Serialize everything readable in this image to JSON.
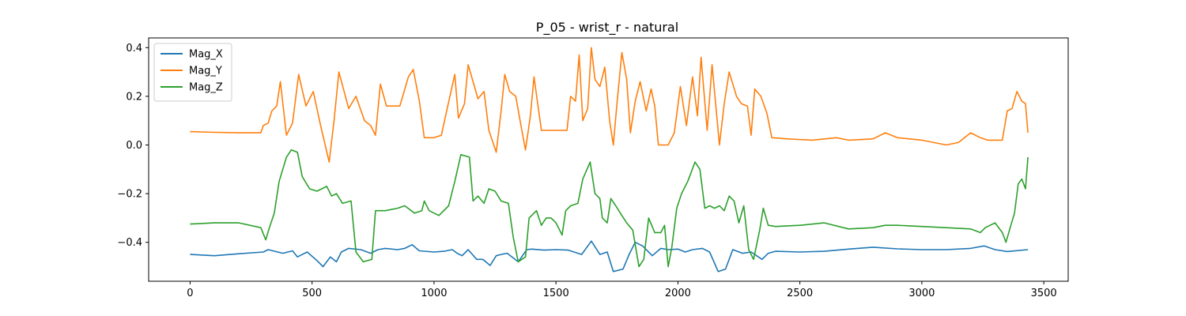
{
  "chart_data": {
    "type": "line",
    "title": "P_05 - wrist_r - natural",
    "xlabel": "",
    "ylabel": "",
    "xlim": [
      -170,
      3600
    ],
    "ylim": [
      -0.56,
      0.44
    ],
    "x_ticks": [
      0,
      500,
      1000,
      1500,
      2000,
      2500,
      3000,
      3500
    ],
    "x_tick_labels": [
      "0",
      "500",
      "1000",
      "1500",
      "2000",
      "2500",
      "3000",
      "3500"
    ],
    "y_ticks": [
      0.4,
      0.2,
      0.0,
      -0.2,
      -0.4
    ],
    "y_tick_labels": [
      "0.4",
      "0.2",
      "0.0",
      "−0.2",
      "−0.4"
    ],
    "grid": false,
    "legend": "top-left",
    "series": [
      {
        "name": "Mag_X",
        "color": "#1f77b4",
        "points": [
          [
            0,
            -0.45
          ],
          [
            100,
            -0.455
          ],
          [
            200,
            -0.447
          ],
          [
            300,
            -0.44
          ],
          [
            320,
            -0.43
          ],
          [
            380,
            -0.445
          ],
          [
            420,
            -0.435
          ],
          [
            440,
            -0.46
          ],
          [
            480,
            -0.44
          ],
          [
            520,
            -0.475
          ],
          [
            545,
            -0.5
          ],
          [
            575,
            -0.46
          ],
          [
            600,
            -0.48
          ],
          [
            620,
            -0.44
          ],
          [
            650,
            -0.425
          ],
          [
            700,
            -0.43
          ],
          [
            740,
            -0.445
          ],
          [
            770,
            -0.43
          ],
          [
            800,
            -0.425
          ],
          [
            850,
            -0.43
          ],
          [
            880,
            -0.425
          ],
          [
            910,
            -0.41
          ],
          [
            940,
            -0.435
          ],
          [
            1000,
            -0.44
          ],
          [
            1040,
            -0.437
          ],
          [
            1075,
            -0.43
          ],
          [
            1095,
            -0.445
          ],
          [
            1115,
            -0.455
          ],
          [
            1140,
            -0.43
          ],
          [
            1175,
            -0.47
          ],
          [
            1200,
            -0.47
          ],
          [
            1230,
            -0.495
          ],
          [
            1255,
            -0.455
          ],
          [
            1275,
            -0.45
          ],
          [
            1300,
            -0.445
          ],
          [
            1345,
            -0.48
          ],
          [
            1380,
            -0.43
          ],
          [
            1400,
            -0.428
          ],
          [
            1450,
            -0.432
          ],
          [
            1500,
            -0.43
          ],
          [
            1550,
            -0.432
          ],
          [
            1605,
            -0.45
          ],
          [
            1645,
            -0.395
          ],
          [
            1680,
            -0.45
          ],
          [
            1710,
            -0.44
          ],
          [
            1735,
            -0.52
          ],
          [
            1775,
            -0.51
          ],
          [
            1800,
            -0.45
          ],
          [
            1825,
            -0.4
          ],
          [
            1855,
            -0.415
          ],
          [
            1895,
            -0.455
          ],
          [
            1930,
            -0.425
          ],
          [
            1960,
            -0.43
          ],
          [
            2000,
            -0.428
          ],
          [
            2030,
            -0.44
          ],
          [
            2060,
            -0.43
          ],
          [
            2100,
            -0.425
          ],
          [
            2130,
            -0.44
          ],
          [
            2165,
            -0.52
          ],
          [
            2195,
            -0.51
          ],
          [
            2225,
            -0.43
          ],
          [
            2265,
            -0.445
          ],
          [
            2300,
            -0.44
          ],
          [
            2345,
            -0.47
          ],
          [
            2370,
            -0.445
          ],
          [
            2400,
            -0.437
          ],
          [
            2500,
            -0.44
          ],
          [
            2600,
            -0.437
          ],
          [
            2700,
            -0.428
          ],
          [
            2800,
            -0.42
          ],
          [
            2900,
            -0.427
          ],
          [
            3000,
            -0.43
          ],
          [
            3100,
            -0.43
          ],
          [
            3200,
            -0.425
          ],
          [
            3255,
            -0.415
          ],
          [
            3300,
            -0.43
          ],
          [
            3350,
            -0.438
          ],
          [
            3435,
            -0.43
          ]
        ]
      },
      {
        "name": "Mag_Y",
        "color": "#ff7f0e",
        "points": [
          [
            0,
            0.055
          ],
          [
            100,
            0.052
          ],
          [
            200,
            0.05
          ],
          [
            290,
            0.05
          ],
          [
            300,
            0.08
          ],
          [
            320,
            0.09
          ],
          [
            335,
            0.14
          ],
          [
            355,
            0.16
          ],
          [
            370,
            0.26
          ],
          [
            395,
            0.04
          ],
          [
            420,
            0.09
          ],
          [
            445,
            0.29
          ],
          [
            475,
            0.16
          ],
          [
            505,
            0.22
          ],
          [
            535,
            0.08
          ],
          [
            570,
            -0.07
          ],
          [
            590,
            0.1
          ],
          [
            610,
            0.3
          ],
          [
            650,
            0.15
          ],
          [
            680,
            0.2
          ],
          [
            715,
            0.1
          ],
          [
            740,
            0.08
          ],
          [
            760,
            0.04
          ],
          [
            780,
            0.25
          ],
          [
            805,
            0.16
          ],
          [
            860,
            0.16
          ],
          [
            895,
            0.28
          ],
          [
            915,
            0.31
          ],
          [
            940,
            0.18
          ],
          [
            960,
            0.03
          ],
          [
            1000,
            0.03
          ],
          [
            1030,
            0.04
          ],
          [
            1065,
            0.2
          ],
          [
            1085,
            0.29
          ],
          [
            1100,
            0.11
          ],
          [
            1125,
            0.17
          ],
          [
            1140,
            0.33
          ],
          [
            1160,
            0.26
          ],
          [
            1180,
            0.19
          ],
          [
            1205,
            0.22
          ],
          [
            1225,
            0.06
          ],
          [
            1255,
            -0.03
          ],
          [
            1275,
            0.14
          ],
          [
            1290,
            0.29
          ],
          [
            1310,
            0.22
          ],
          [
            1335,
            0.2
          ],
          [
            1360,
            0.06
          ],
          [
            1375,
            -0.02
          ],
          [
            1395,
            0.12
          ],
          [
            1410,
            0.28
          ],
          [
            1440,
            0.06
          ],
          [
            1460,
            0.06
          ],
          [
            1500,
            0.06
          ],
          [
            1545,
            0.06
          ],
          [
            1560,
            0.2
          ],
          [
            1580,
            0.18
          ],
          [
            1595,
            0.37
          ],
          [
            1610,
            0.1
          ],
          [
            1630,
            0.15
          ],
          [
            1645,
            0.4
          ],
          [
            1660,
            0.27
          ],
          [
            1680,
            0.24
          ],
          [
            1700,
            0.32
          ],
          [
            1720,
            0.1
          ],
          [
            1735,
            0.0
          ],
          [
            1750,
            0.17
          ],
          [
            1770,
            0.38
          ],
          [
            1790,
            0.27
          ],
          [
            1805,
            0.05
          ],
          [
            1825,
            0.18
          ],
          [
            1845,
            0.26
          ],
          [
            1870,
            0.14
          ],
          [
            1890,
            0.23
          ],
          [
            1905,
            0.16
          ],
          [
            1920,
            0.0
          ],
          [
            1960,
            0.0
          ],
          [
            1985,
            0.05
          ],
          [
            2010,
            0.24
          ],
          [
            2035,
            0.08
          ],
          [
            2060,
            0.28
          ],
          [
            2080,
            0.12
          ],
          [
            2095,
            0.36
          ],
          [
            2120,
            0.06
          ],
          [
            2140,
            0.33
          ],
          [
            2170,
            0.0
          ],
          [
            2190,
            0.17
          ],
          [
            2210,
            0.3
          ],
          [
            2240,
            0.2
          ],
          [
            2260,
            0.17
          ],
          [
            2285,
            0.16
          ],
          [
            2300,
            0.04
          ],
          [
            2315,
            0.23
          ],
          [
            2340,
            0.2
          ],
          [
            2365,
            0.13
          ],
          [
            2385,
            0.03
          ],
          [
            2450,
            0.025
          ],
          [
            2550,
            0.02
          ],
          [
            2650,
            0.03
          ],
          [
            2700,
            0.02
          ],
          [
            2800,
            0.025
          ],
          [
            2850,
            0.05
          ],
          [
            2900,
            0.03
          ],
          [
            3000,
            0.02
          ],
          [
            3100,
            0.0
          ],
          [
            3150,
            0.01
          ],
          [
            3200,
            0.05
          ],
          [
            3240,
            0.03
          ],
          [
            3270,
            0.02
          ],
          [
            3330,
            0.02
          ],
          [
            3350,
            0.14
          ],
          [
            3370,
            0.15
          ],
          [
            3390,
            0.22
          ],
          [
            3410,
            0.18
          ],
          [
            3425,
            0.17
          ],
          [
            3435,
            0.05
          ]
        ]
      },
      {
        "name": "Mag_Z",
        "color": "#2ca02c",
        "points": [
          [
            0,
            -0.325
          ],
          [
            100,
            -0.32
          ],
          [
            200,
            -0.32
          ],
          [
            290,
            -0.34
          ],
          [
            310,
            -0.39
          ],
          [
            325,
            -0.34
          ],
          [
            345,
            -0.28
          ],
          [
            365,
            -0.15
          ],
          [
            395,
            -0.05
          ],
          [
            415,
            -0.02
          ],
          [
            440,
            -0.03
          ],
          [
            460,
            -0.13
          ],
          [
            490,
            -0.18
          ],
          [
            520,
            -0.19
          ],
          [
            560,
            -0.17
          ],
          [
            580,
            -0.21
          ],
          [
            600,
            -0.2
          ],
          [
            625,
            -0.24
          ],
          [
            660,
            -0.23
          ],
          [
            680,
            -0.44
          ],
          [
            710,
            -0.48
          ],
          [
            745,
            -0.47
          ],
          [
            760,
            -0.27
          ],
          [
            800,
            -0.27
          ],
          [
            850,
            -0.26
          ],
          [
            880,
            -0.25
          ],
          [
            920,
            -0.28
          ],
          [
            950,
            -0.27
          ],
          [
            960,
            -0.23
          ],
          [
            980,
            -0.27
          ],
          [
            1020,
            -0.29
          ],
          [
            1060,
            -0.25
          ],
          [
            1085,
            -0.15
          ],
          [
            1110,
            -0.04
          ],
          [
            1145,
            -0.05
          ],
          [
            1160,
            -0.23
          ],
          [
            1180,
            -0.21
          ],
          [
            1205,
            -0.24
          ],
          [
            1225,
            -0.18
          ],
          [
            1250,
            -0.19
          ],
          [
            1275,
            -0.23
          ],
          [
            1305,
            -0.24
          ],
          [
            1325,
            -0.38
          ],
          [
            1345,
            -0.48
          ],
          [
            1375,
            -0.46
          ],
          [
            1390,
            -0.3
          ],
          [
            1420,
            -0.27
          ],
          [
            1440,
            -0.33
          ],
          [
            1460,
            -0.3
          ],
          [
            1480,
            -0.3
          ],
          [
            1500,
            -0.32
          ],
          [
            1525,
            -0.37
          ],
          [
            1540,
            -0.27
          ],
          [
            1560,
            -0.25
          ],
          [
            1590,
            -0.24
          ],
          [
            1610,
            -0.14
          ],
          [
            1640,
            -0.07
          ],
          [
            1660,
            -0.2
          ],
          [
            1680,
            -0.22
          ],
          [
            1690,
            -0.3
          ],
          [
            1710,
            -0.32
          ],
          [
            1725,
            -0.22
          ],
          [
            1745,
            -0.25
          ],
          [
            1770,
            -0.29
          ],
          [
            1790,
            -0.32
          ],
          [
            1815,
            -0.35
          ],
          [
            1840,
            -0.5
          ],
          [
            1860,
            -0.47
          ],
          [
            1880,
            -0.3
          ],
          [
            1905,
            -0.36
          ],
          [
            1930,
            -0.36
          ],
          [
            1945,
            -0.33
          ],
          [
            1960,
            -0.5
          ],
          [
            1975,
            -0.42
          ],
          [
            1995,
            -0.26
          ],
          [
            2015,
            -0.2
          ],
          [
            2040,
            -0.15
          ],
          [
            2070,
            -0.07
          ],
          [
            2090,
            -0.1
          ],
          [
            2110,
            -0.26
          ],
          [
            2130,
            -0.25
          ],
          [
            2150,
            -0.26
          ],
          [
            2170,
            -0.25
          ],
          [
            2190,
            -0.27
          ],
          [
            2210,
            -0.21
          ],
          [
            2230,
            -0.23
          ],
          [
            2250,
            -0.32
          ],
          [
            2270,
            -0.25
          ],
          [
            2290,
            -0.43
          ],
          [
            2310,
            -0.47
          ],
          [
            2335,
            -0.35
          ],
          [
            2350,
            -0.26
          ],
          [
            2370,
            -0.33
          ],
          [
            2400,
            -0.335
          ],
          [
            2500,
            -0.33
          ],
          [
            2600,
            -0.32
          ],
          [
            2700,
            -0.345
          ],
          [
            2800,
            -0.34
          ],
          [
            2850,
            -0.33
          ],
          [
            2900,
            -0.33
          ],
          [
            3000,
            -0.335
          ],
          [
            3100,
            -0.34
          ],
          [
            3200,
            -0.345
          ],
          [
            3240,
            -0.36
          ],
          [
            3260,
            -0.34
          ],
          [
            3300,
            -0.32
          ],
          [
            3330,
            -0.36
          ],
          [
            3345,
            -0.4
          ],
          [
            3365,
            -0.33
          ],
          [
            3380,
            -0.28
          ],
          [
            3395,
            -0.16
          ],
          [
            3410,
            -0.14
          ],
          [
            3425,
            -0.18
          ],
          [
            3435,
            -0.05
          ]
        ]
      }
    ]
  }
}
